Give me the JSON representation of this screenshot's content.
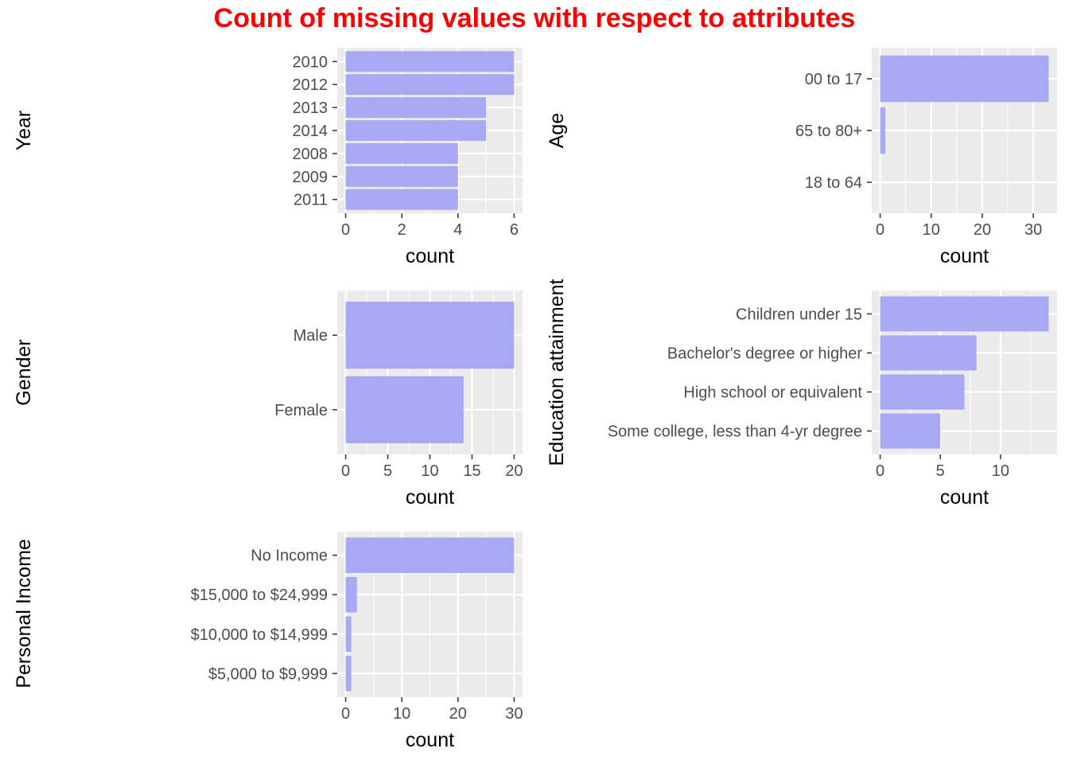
{
  "title": "Count of missing values with respect to attributes",
  "colors": {
    "title": "#ff0000",
    "bar": "#a4a4f6",
    "panel": "#ebebeb",
    "grid": "#ffffff",
    "tick_text": "#4d4d4d",
    "axis_text": "#000000"
  },
  "chart_data": [
    {
      "type": "bar",
      "orientation": "horizontal",
      "xlabel": "count",
      "ylabel": "Year",
      "categories": [
        "2010",
        "2012",
        "2013",
        "2014",
        "2008",
        "2009",
        "2011"
      ],
      "values": [
        6,
        6,
        5,
        5,
        4,
        4,
        4
      ],
      "xticks": [
        0,
        2,
        4,
        6
      ],
      "xlim": [
        -0.3,
        6.3
      ],
      "grid": true
    },
    {
      "type": "bar",
      "orientation": "horizontal",
      "xlabel": "count",
      "ylabel": "Age",
      "categories": [
        "00 to 17",
        "65 to 80+",
        "18 to 64"
      ],
      "values": [
        33,
        1,
        0
      ],
      "xticks": [
        0,
        10,
        20,
        30
      ],
      "xlim": [
        -1.65,
        34.65
      ],
      "grid": true
    },
    {
      "type": "bar",
      "orientation": "horizontal",
      "xlabel": "count",
      "ylabel": "Gender",
      "categories": [
        "Male",
        "Female"
      ],
      "values": [
        20,
        14
      ],
      "xticks": [
        0,
        5,
        10,
        15,
        20
      ],
      "xlim": [
        -1,
        21
      ],
      "grid": true
    },
    {
      "type": "bar",
      "orientation": "horizontal",
      "xlabel": "count",
      "ylabel": "Education attainment",
      "categories": [
        "Children under 15",
        "Bachelor's degree or higher",
        "High school or equivalent",
        "Some college, less than 4-yr degree"
      ],
      "values": [
        14,
        8,
        7,
        5
      ],
      "xticks": [
        0,
        5,
        10
      ],
      "xlim": [
        -0.7,
        14.7
      ],
      "grid": true
    },
    {
      "type": "bar",
      "orientation": "horizontal",
      "xlabel": "count",
      "ylabel": "Personal Income",
      "categories": [
        "No Income",
        "$15,000 to $24,999",
        "$10,000 to $14,999",
        "$5,000 to $9,999"
      ],
      "values": [
        30,
        2,
        1,
        1
      ],
      "xticks": [
        0,
        10,
        20,
        30
      ],
      "xlim": [
        -1.5,
        31.5
      ],
      "grid": true
    }
  ]
}
